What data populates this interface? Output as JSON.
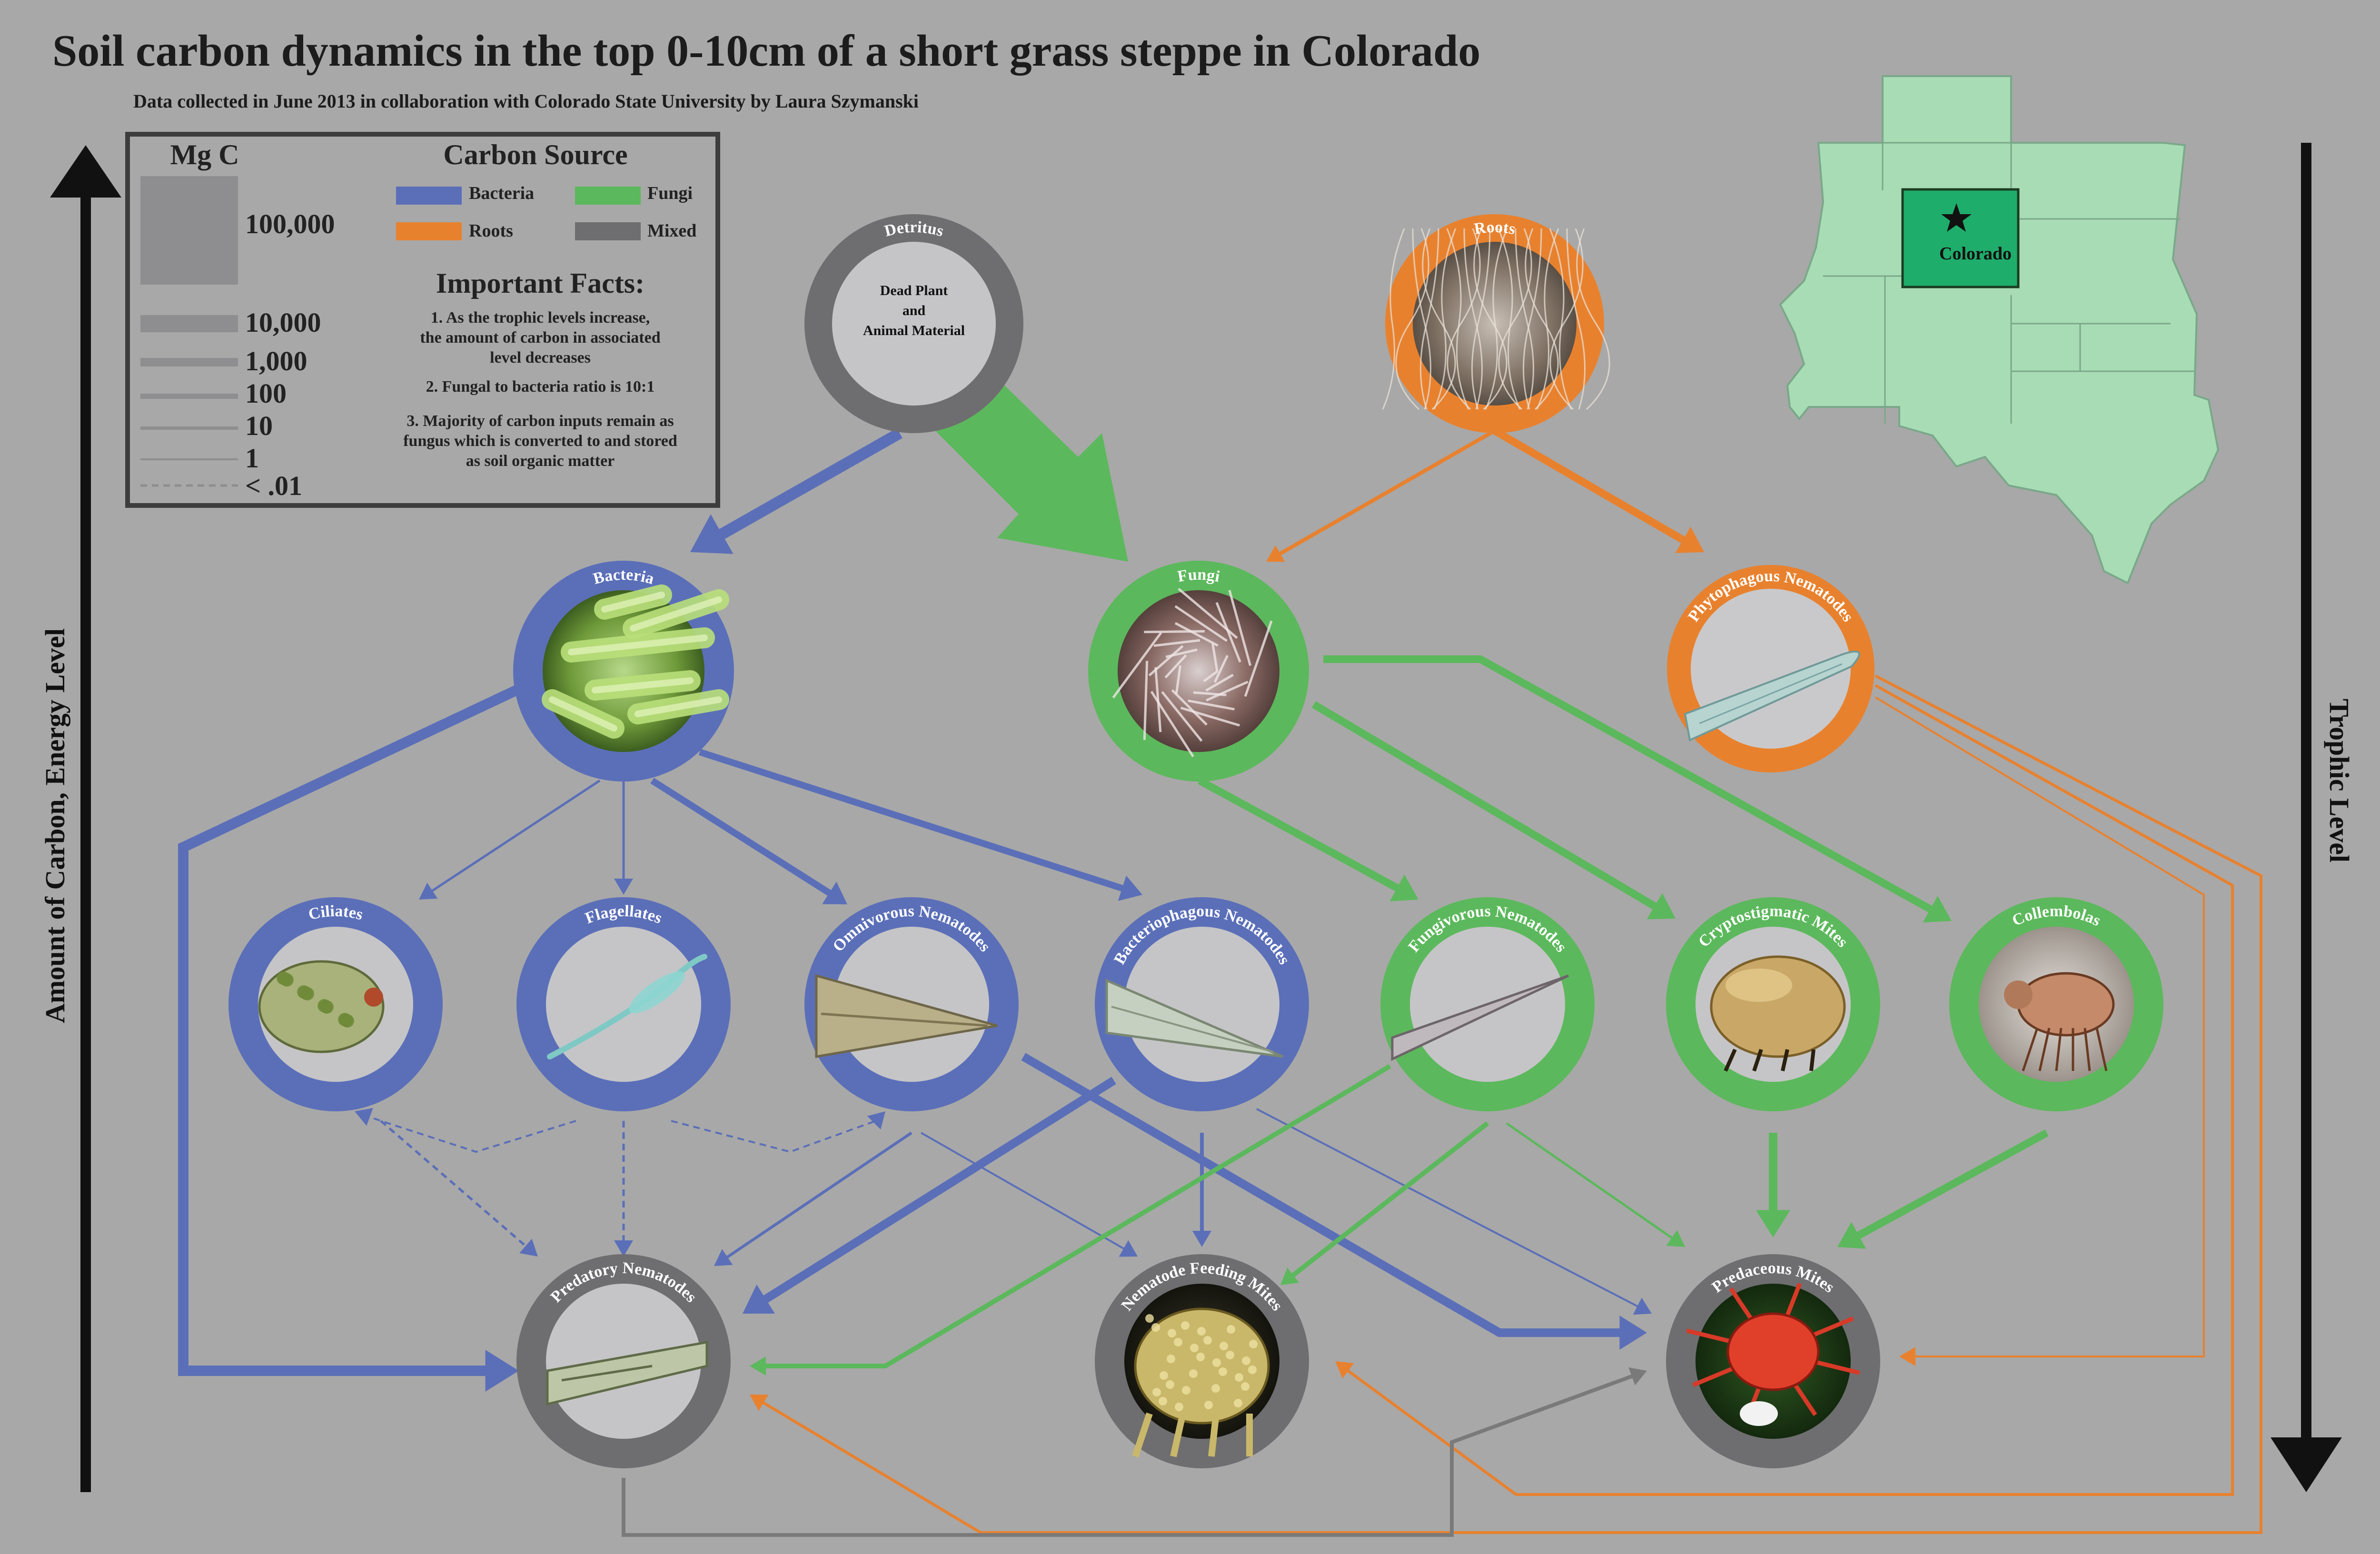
{
  "header": {
    "title": "Soil carbon dynamics in the top 0-10cm of a short grass steppe in Colorado",
    "subtitle": "Data collected in June 2013 in collaboration with Colorado State University by Laura Szymanski"
  },
  "axes": {
    "left_label": "Amount of Carbon, Energy Level",
    "right_label": "Trophic Level"
  },
  "legend": {
    "mgc_title": "Mg C",
    "scale": [
      {
        "label": "100,000"
      },
      {
        "label": "10,000"
      },
      {
        "label": "1,000"
      },
      {
        "label": "100"
      },
      {
        "label": "10"
      },
      {
        "label": "1"
      },
      {
        "label": "< .01"
      }
    ],
    "source_title": "Carbon Source",
    "sources": [
      {
        "label": "Bacteria",
        "color": "#5b6fb8"
      },
      {
        "label": "Fungi",
        "color": "#5cb85c"
      },
      {
        "label": "Roots",
        "color": "#e8812e"
      },
      {
        "label": "Mixed",
        "color": "#6e6e70"
      }
    ],
    "facts_title": "Important Facts:",
    "facts": [
      {
        "lines": [
          "1. As the trophic levels increase,",
          "the amount of carbon in associated",
          "level decreases"
        ]
      },
      {
        "lines": [
          "2. Fungal to bacteria ratio is 10:1"
        ]
      },
      {
        "lines": [
          "3. Majority of carbon inputs remain as",
          "fungus which is converted to and stored",
          "as soil organic matter"
        ]
      }
    ]
  },
  "map": {
    "label": "Colorado",
    "region_color": "#a8dcb4",
    "highlight_color": "#1fad6b",
    "star_icon": "star-icon"
  },
  "nodes": {
    "detritus": {
      "label": "Detritus",
      "inner_lines": [
        "Dead Plant",
        "and",
        "Animal Material"
      ],
      "source": "mixed"
    },
    "roots": {
      "label": "Roots",
      "source": "roots"
    },
    "bacteria": {
      "label": "Bacteria",
      "source": "bacteria"
    },
    "fungi": {
      "label": "Fungi",
      "source": "fungi"
    },
    "phytophagous": {
      "label": "Phytophagous Nematodes",
      "source": "roots"
    },
    "ciliates": {
      "label": "Ciliates",
      "source": "bacteria"
    },
    "flagellates": {
      "label": "Flagellates",
      "source": "bacteria"
    },
    "omnivorous": {
      "label": "Omnivorous Nematodes",
      "source": "bacteria"
    },
    "bacteriophagous": {
      "label": "Bacteriophagous Nematodes",
      "source": "bacteria"
    },
    "fungivorous": {
      "label": "Fungivorous Nematodes",
      "source": "fungi"
    },
    "cryptostigmatic": {
      "label": "Cryptostigmatic Mites",
      "source": "fungi"
    },
    "collembolas": {
      "label": "Collembolas",
      "source": "fungi"
    },
    "predatory": {
      "label": "Predatory Nematodes",
      "source": "mixed"
    },
    "nematode_feeding": {
      "label": "Nematode Feeding Mites",
      "source": "mixed"
    },
    "predaceous": {
      "label": "Predaceous Mites",
      "source": "mixed"
    }
  }
}
